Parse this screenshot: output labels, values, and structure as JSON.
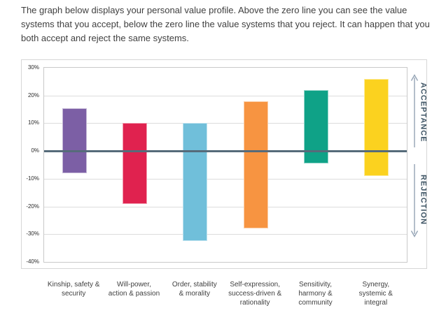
{
  "intro_text": "The graph below displays your personal value profile. Above the zero line you can see the value systems that you accept, below the zero line the value systems that you reject. It can happen that you both accept and reject the same systems.",
  "chart_data": {
    "type": "bar",
    "subtype": "floating-range-columns",
    "title": "",
    "xlabel": "",
    "ylabel": "",
    "ylim": [
      -40,
      30
    ],
    "ytick_step": 10,
    "ytick_labels": [
      "30%",
      "20%",
      "10%",
      "0%",
      "-10%",
      "-20%",
      "-30%",
      "-40%"
    ],
    "grid": true,
    "categories": [
      "Kinship, safety & security",
      "Will-power, action & passion",
      "Order, stability & morality",
      "Self-expression, success-driven & rationality",
      "Sensitivity, harmony & community",
      "Synergy, systemic & integral"
    ],
    "category_lines": [
      [
        "Kinship, safety &",
        "security"
      ],
      [
        "Will-power,",
        "action & passion"
      ],
      [
        "Order, stability",
        "& morality"
      ],
      [
        "Self-expression,",
        "success-driven &",
        "rationality"
      ],
      [
        "Sensitivity,",
        "harmony &",
        "community"
      ],
      [
        "Synergy,",
        "systemic &",
        "integral"
      ]
    ],
    "series": [
      {
        "name": "acceptance",
        "values": [
          15.5,
          10,
          10,
          18,
          22,
          26
        ]
      },
      {
        "name": "rejection",
        "values": [
          -8,
          -19,
          -32.5,
          -28,
          -4.5,
          -9
        ]
      }
    ],
    "bar_colors": [
      "#7C5FA5",
      "#E0224F",
      "#70BFDA",
      "#F79441",
      "#0FA287",
      "#FBD21F"
    ],
    "zero_line_color": "#566B7A",
    "gridline_color": "#DCDCDC",
    "right_axis_labels": {
      "top": "ACCEPTANCE",
      "bottom": "REJECTION"
    },
    "annotation_color": "#3E5464",
    "arrow_color": "#93A3B4"
  }
}
